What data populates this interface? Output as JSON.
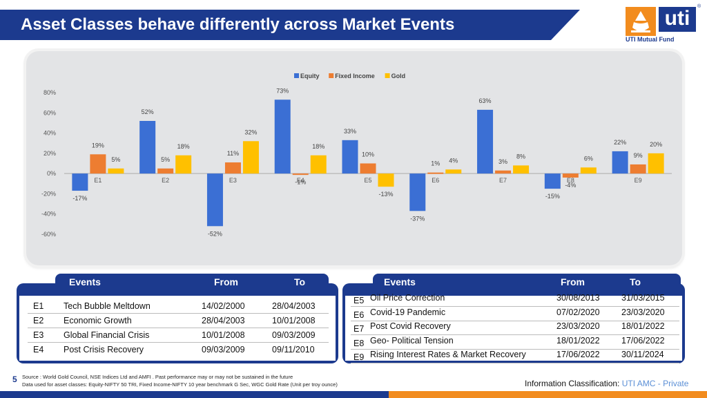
{
  "header": {
    "title": "Asset Classes behave differently across Market Events",
    "logo_word": "uti",
    "logo_sub": "UTI Mutual Fund",
    "logo_reg": "®"
  },
  "chart_data": {
    "type": "bar",
    "title": "",
    "xlabel": "",
    "ylabel": "",
    "categories": [
      "E1",
      "E2",
      "E3",
      "E4",
      "E5",
      "E6",
      "E7",
      "E8",
      "E9"
    ],
    "series": [
      {
        "name": "Equity",
        "color": "#3b6fd4",
        "values": [
          -17,
          52,
          -52,
          73,
          33,
          -37,
          63,
          -15,
          22
        ]
      },
      {
        "name": "Fixed Income",
        "color": "#ed7d31",
        "values": [
          19,
          5,
          11,
          -1,
          10,
          1,
          3,
          -4,
          9
        ]
      },
      {
        "name": "Gold",
        "color": "#ffc000",
        "values": [
          5,
          18,
          32,
          18,
          -13,
          4,
          8,
          6,
          20
        ]
      }
    ],
    "ylim": [
      -60,
      80
    ],
    "yticks": [
      "80%",
      "60%",
      "40%",
      "20%",
      "0%",
      "-20%",
      "-40%",
      "-60%"
    ],
    "value_suffix": "%",
    "legend_position": "top-center",
    "grid": false
  },
  "events_left": {
    "headers": [
      "Events",
      "From",
      "To"
    ],
    "rows": [
      {
        "code": "E1",
        "name": "Tech Bubble Meltdown",
        "from": "14/02/2000",
        "to": "28/04/2003"
      },
      {
        "code": "E2",
        "name": "Economic Growth",
        "from": "28/04/2003",
        "to": "10/01/2008"
      },
      {
        "code": "E3",
        "name": "Global Financial Crisis",
        "from": "10/01/2008",
        "to": "09/03/2009"
      },
      {
        "code": "E4",
        "name": "Post Crisis Recovery",
        "from": "09/03/2009",
        "to": "09/11/2010"
      }
    ]
  },
  "events_right": {
    "headers": [
      "Events",
      "From",
      "To"
    ],
    "rows": [
      {
        "code": "E5",
        "name": "Oil Price Correction",
        "from": "30/08/2013",
        "to": "31/03/2015"
      },
      {
        "code": "E6",
        "name": "Covid-19 Pandemic",
        "from": "07/02/2020",
        "to": "23/03/2020"
      },
      {
        "code": "E7",
        "name": "Post Covid Recovery",
        "from": "23/03/2020",
        "to": "18/01/2022"
      },
      {
        "code": "E8",
        "name": "Geo- Political Tension",
        "from": "18/01/2022",
        "to": "17/06/2022"
      },
      {
        "code": "E9",
        "name": "Rising Interest Rates & Market Recovery",
        "from": "17/06/2022",
        "to": "30/11/2024"
      }
    ]
  },
  "footer": {
    "page_number": "5",
    "source_line1": "Source : World Gold Council, NSE Indices Ltd and AMFI . Past performance may or may not be sustained in the future",
    "source_line2": "Data used for asset classes: Equity-NIFTY 50 TRI, Fixed Income-NIFTY 10 year benchmark G Sec, WGC Gold Rate (Unit per troy ounce)",
    "classification_label": "Information Classification: ",
    "classification_value": "UTI AMC - Private"
  },
  "colors": {
    "brand_blue": "#1c3a8e",
    "brand_orange": "#f28c1e"
  }
}
